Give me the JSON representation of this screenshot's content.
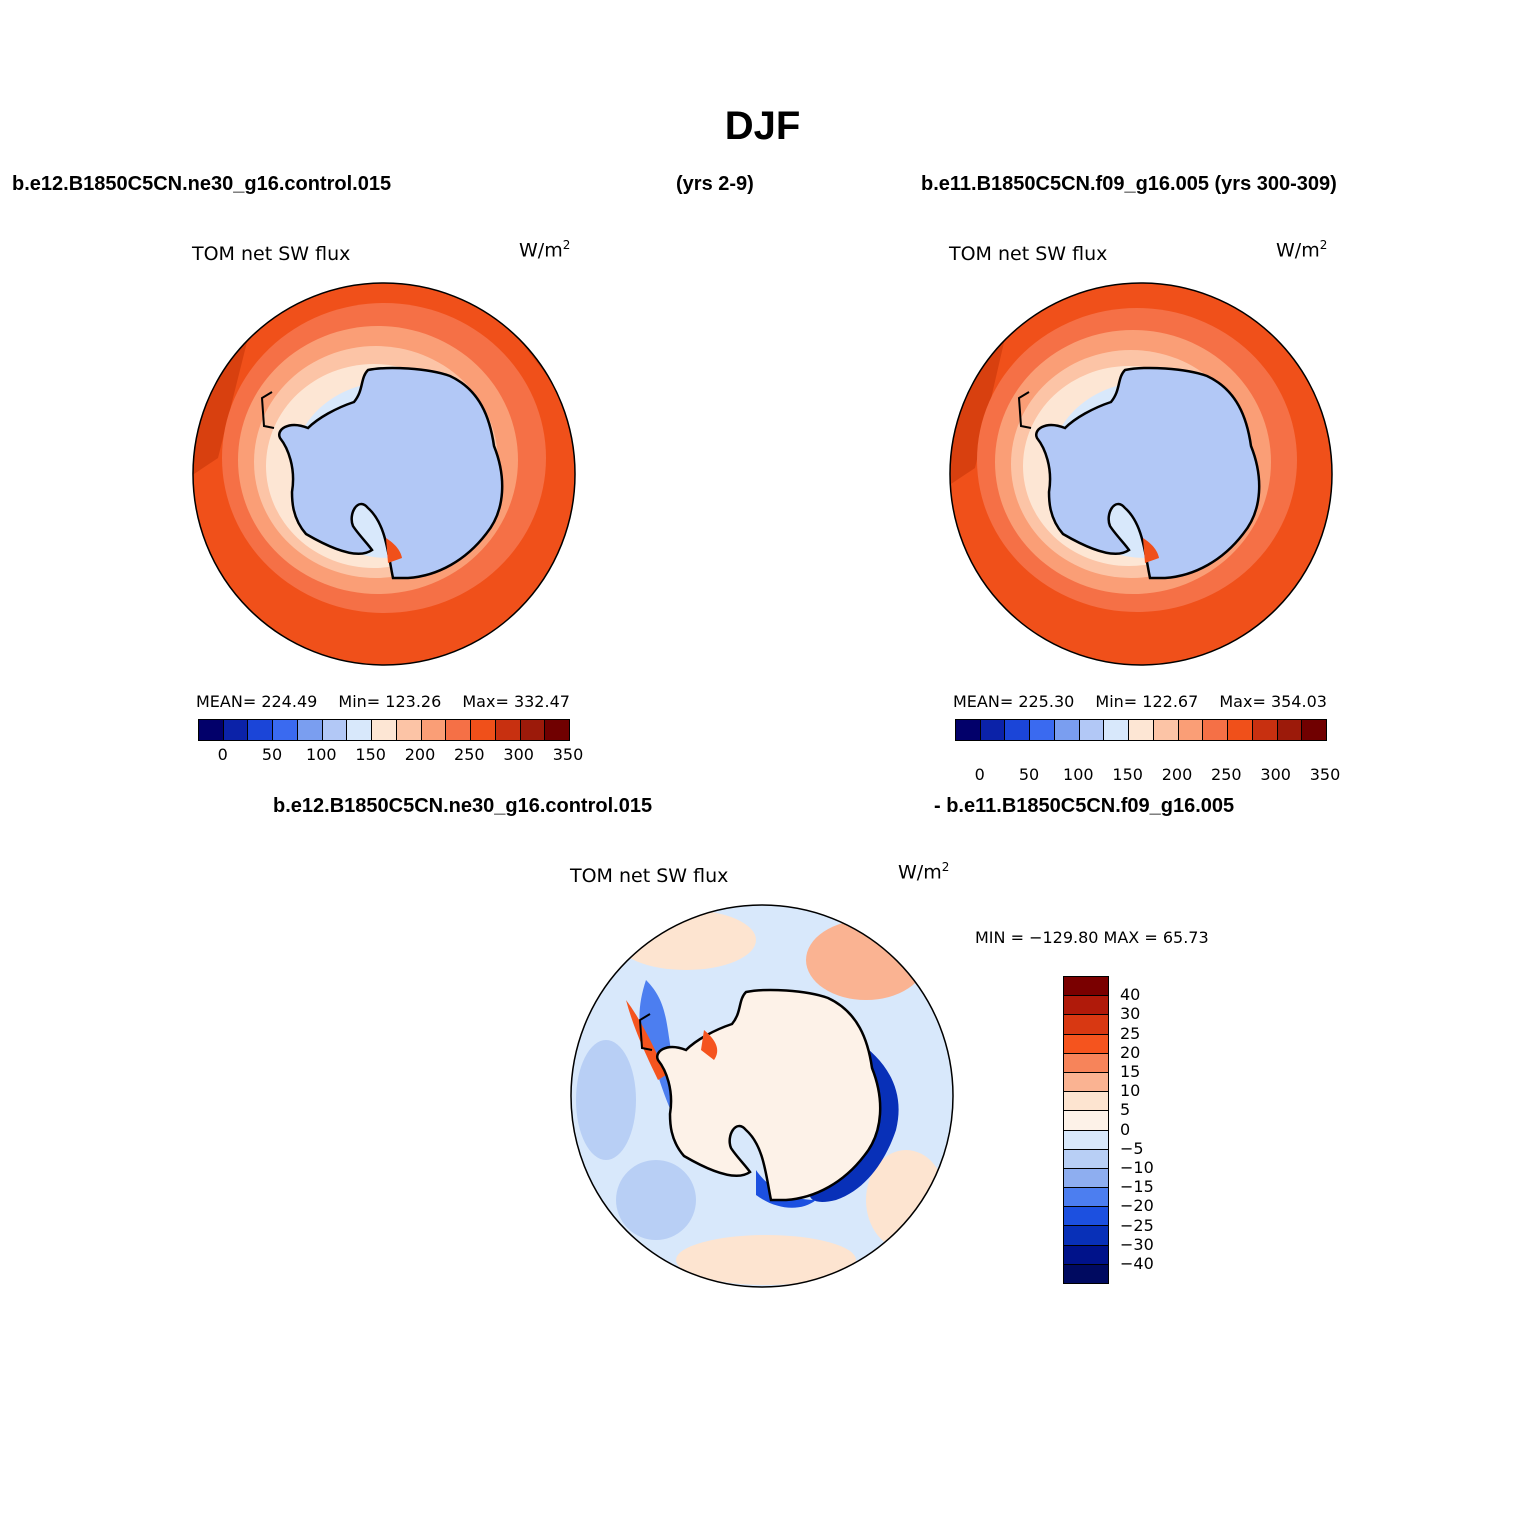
{
  "title": "DJF",
  "header": {
    "left_run": "b.e12.B1850C5CN.ne30_g16.control.015",
    "left_years": "(yrs 2-9)",
    "right_run": "b.e11.B1850C5CN.f09_g16.005 (yrs 300-309)"
  },
  "diff_header": {
    "left": "b.e12.B1850C5CN.ne30_g16.control.015",
    "right": "- b.e11.B1850C5CN.f09_g16.005"
  },
  "panels": [
    {
      "field": "TOM net SW flux",
      "units": "W/m",
      "units_exp": "2",
      "mean_label": "MEAN= 224.49",
      "min_label": "Min= 123.26",
      "max_label": "Max= 332.47"
    },
    {
      "field": "TOM net SW flux",
      "units": "W/m",
      "units_exp": "2",
      "mean_label": "MEAN= 225.30",
      "min_label": "Min= 122.67",
      "max_label": "Max= 354.03"
    }
  ],
  "diff_panel": {
    "field": "TOM net SW flux",
    "units": "W/m",
    "units_exp": "2",
    "minmax_label": "MIN = −129.80 MAX =  65.73"
  },
  "abs_colorbar": {
    "colors": [
      "#02006a",
      "#0b22a8",
      "#1b45d8",
      "#3a6af0",
      "#7a9ef0",
      "#b2c8f6",
      "#d8e8fb",
      "#fde6d4",
      "#fcc4a6",
      "#fa9e76",
      "#f57046",
      "#f0501a",
      "#c83010",
      "#9c1a0a",
      "#700000"
    ],
    "tick_labels": [
      "0",
      "50",
      "100",
      "150",
      "200",
      "250",
      "300",
      "350"
    ]
  },
  "diff_colorbar": {
    "colors": [
      "#7a0000",
      "#b01a0a",
      "#d83812",
      "#f5541e",
      "#f7845a",
      "#fab392",
      "#fde4d0",
      "#fdf2e8",
      "#d8e8fb",
      "#b8cff5",
      "#8eaef0",
      "#4c7ef0",
      "#1c50e0",
      "#0830b8",
      "#00128a",
      "#000a60"
    ],
    "tick_labels": [
      "40",
      "30",
      "25",
      "20",
      "15",
      "10",
      "5",
      "0",
      "−5",
      "−10",
      "−15",
      "−20",
      "−25",
      "−30",
      "−40"
    ]
  },
  "map_colors": {
    "land_ice": "#b2c8f6",
    "outer_ocean": "#f0501a",
    "coast": "#000000"
  }
}
